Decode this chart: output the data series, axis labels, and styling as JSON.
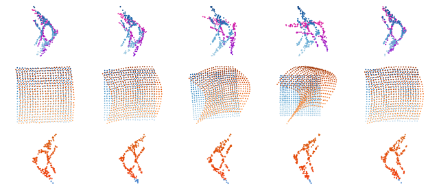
{
  "nrows": 3,
  "ncols": 5,
  "figsize": [
    6.4,
    2.77
  ],
  "dpi": 100,
  "bg_color": "#ffffff",
  "seed": 42,
  "fish_blue": "#4499dd",
  "fish_purple": "#aa44aa",
  "book_blue": "#4477cc",
  "book_orange": "#dd6633",
  "fish_orange": "#dd5522",
  "point_size_fish": 1.8,
  "point_size_book": 1.5
}
